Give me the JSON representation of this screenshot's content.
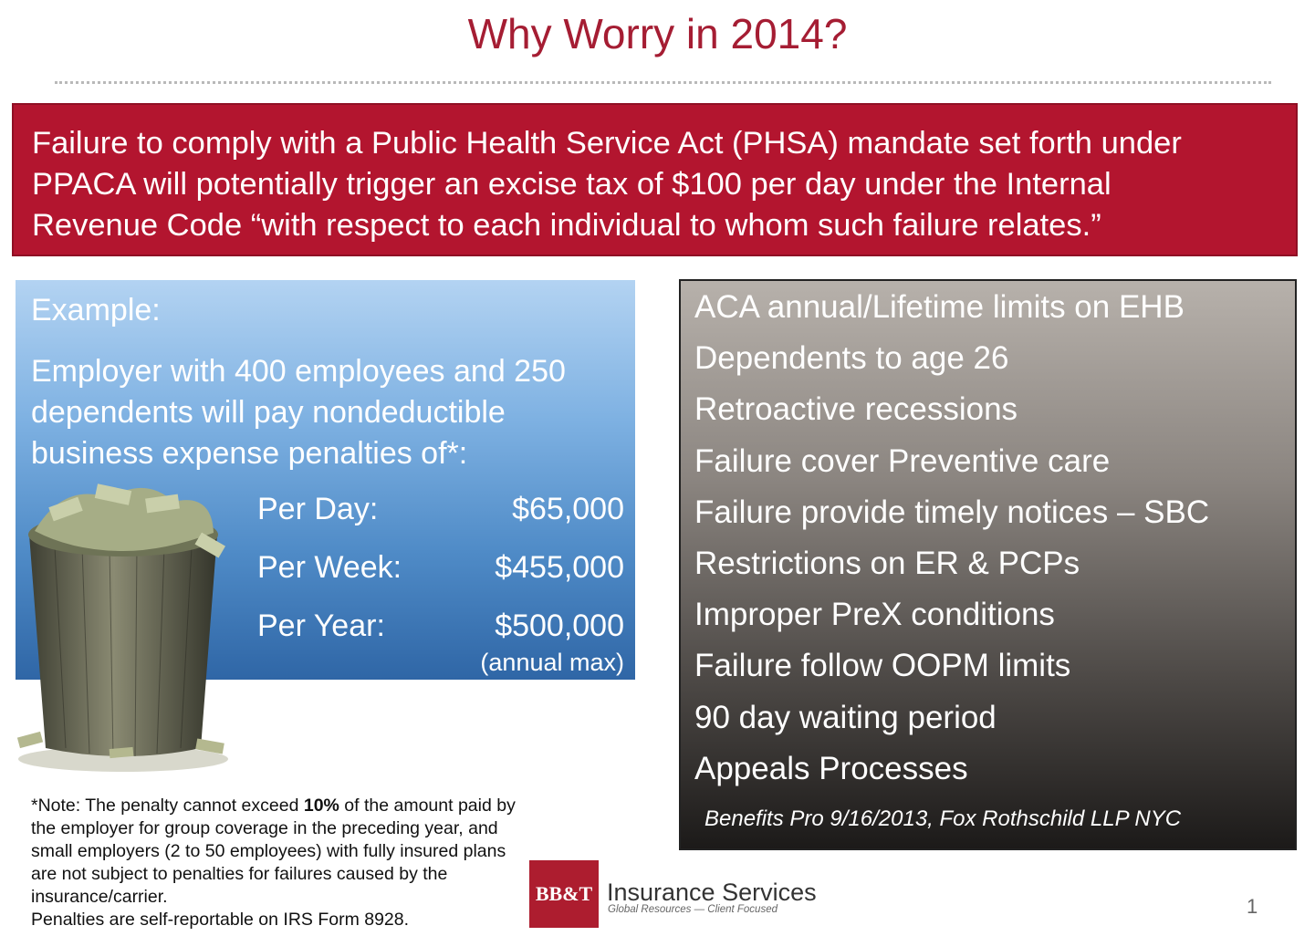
{
  "slide": {
    "title": "Why Worry in 2014?",
    "page_number": "1"
  },
  "banner": {
    "lines": [
      "Failure to comply with a Public Health Service Act (PHSA) mandate set forth under",
      "PPACA will potentially trigger an excise tax of $100 per day under the Internal",
      "Revenue Code “with respect to each individual to whom such failure relates.”"
    ]
  },
  "example": {
    "label": "Example:",
    "lines": [
      "Employer with 400 employees and 250",
      "dependents will pay nondeductible",
      "business expense penalties of*:"
    ],
    "penalties": [
      {
        "label": "Per Day:",
        "value": "$65,000"
      },
      {
        "label": "Per Week:",
        "value": "$455,000"
      },
      {
        "label": "Per Year:",
        "value": "$500,000"
      }
    ],
    "annual_max_note": "(annual max)"
  },
  "risks": {
    "items": [
      "ACA annual/Lifetime limits on EHB",
      "Dependents to age 26",
      "Retroactive recessions",
      "Failure cover Preventive care",
      "Failure provide timely notices – SBC",
      "Restrictions on ER & PCPs",
      "Improper PreX conditions",
      "Failure follow OOPM limits",
      "90 day waiting period",
      "Appeals Processes"
    ],
    "source": "Benefits Pro 9/16/2013, Fox Rothschild LLP NYC"
  },
  "note": {
    "prefix": "*Note: The penalty cannot exceed ",
    "bold": "10%",
    "rest": " of the amount paid by the employer for group coverage in the preceding year, and small employers (2 to 50 employees) with fully insured plans are not subject to penalties for failures caused by the insurance/carrier.",
    "line2": "Penalties are self-reportable on IRS Form 8928."
  },
  "logo": {
    "mark": "BB&T",
    "name": "Insurance Services",
    "tagline": "Global Resources — Client Focused"
  },
  "colors": {
    "title_red": "#a51d33",
    "banner_red": "#b3152f",
    "blue_panel": "#4f8bc7",
    "gray_panel": "#4d4946"
  }
}
